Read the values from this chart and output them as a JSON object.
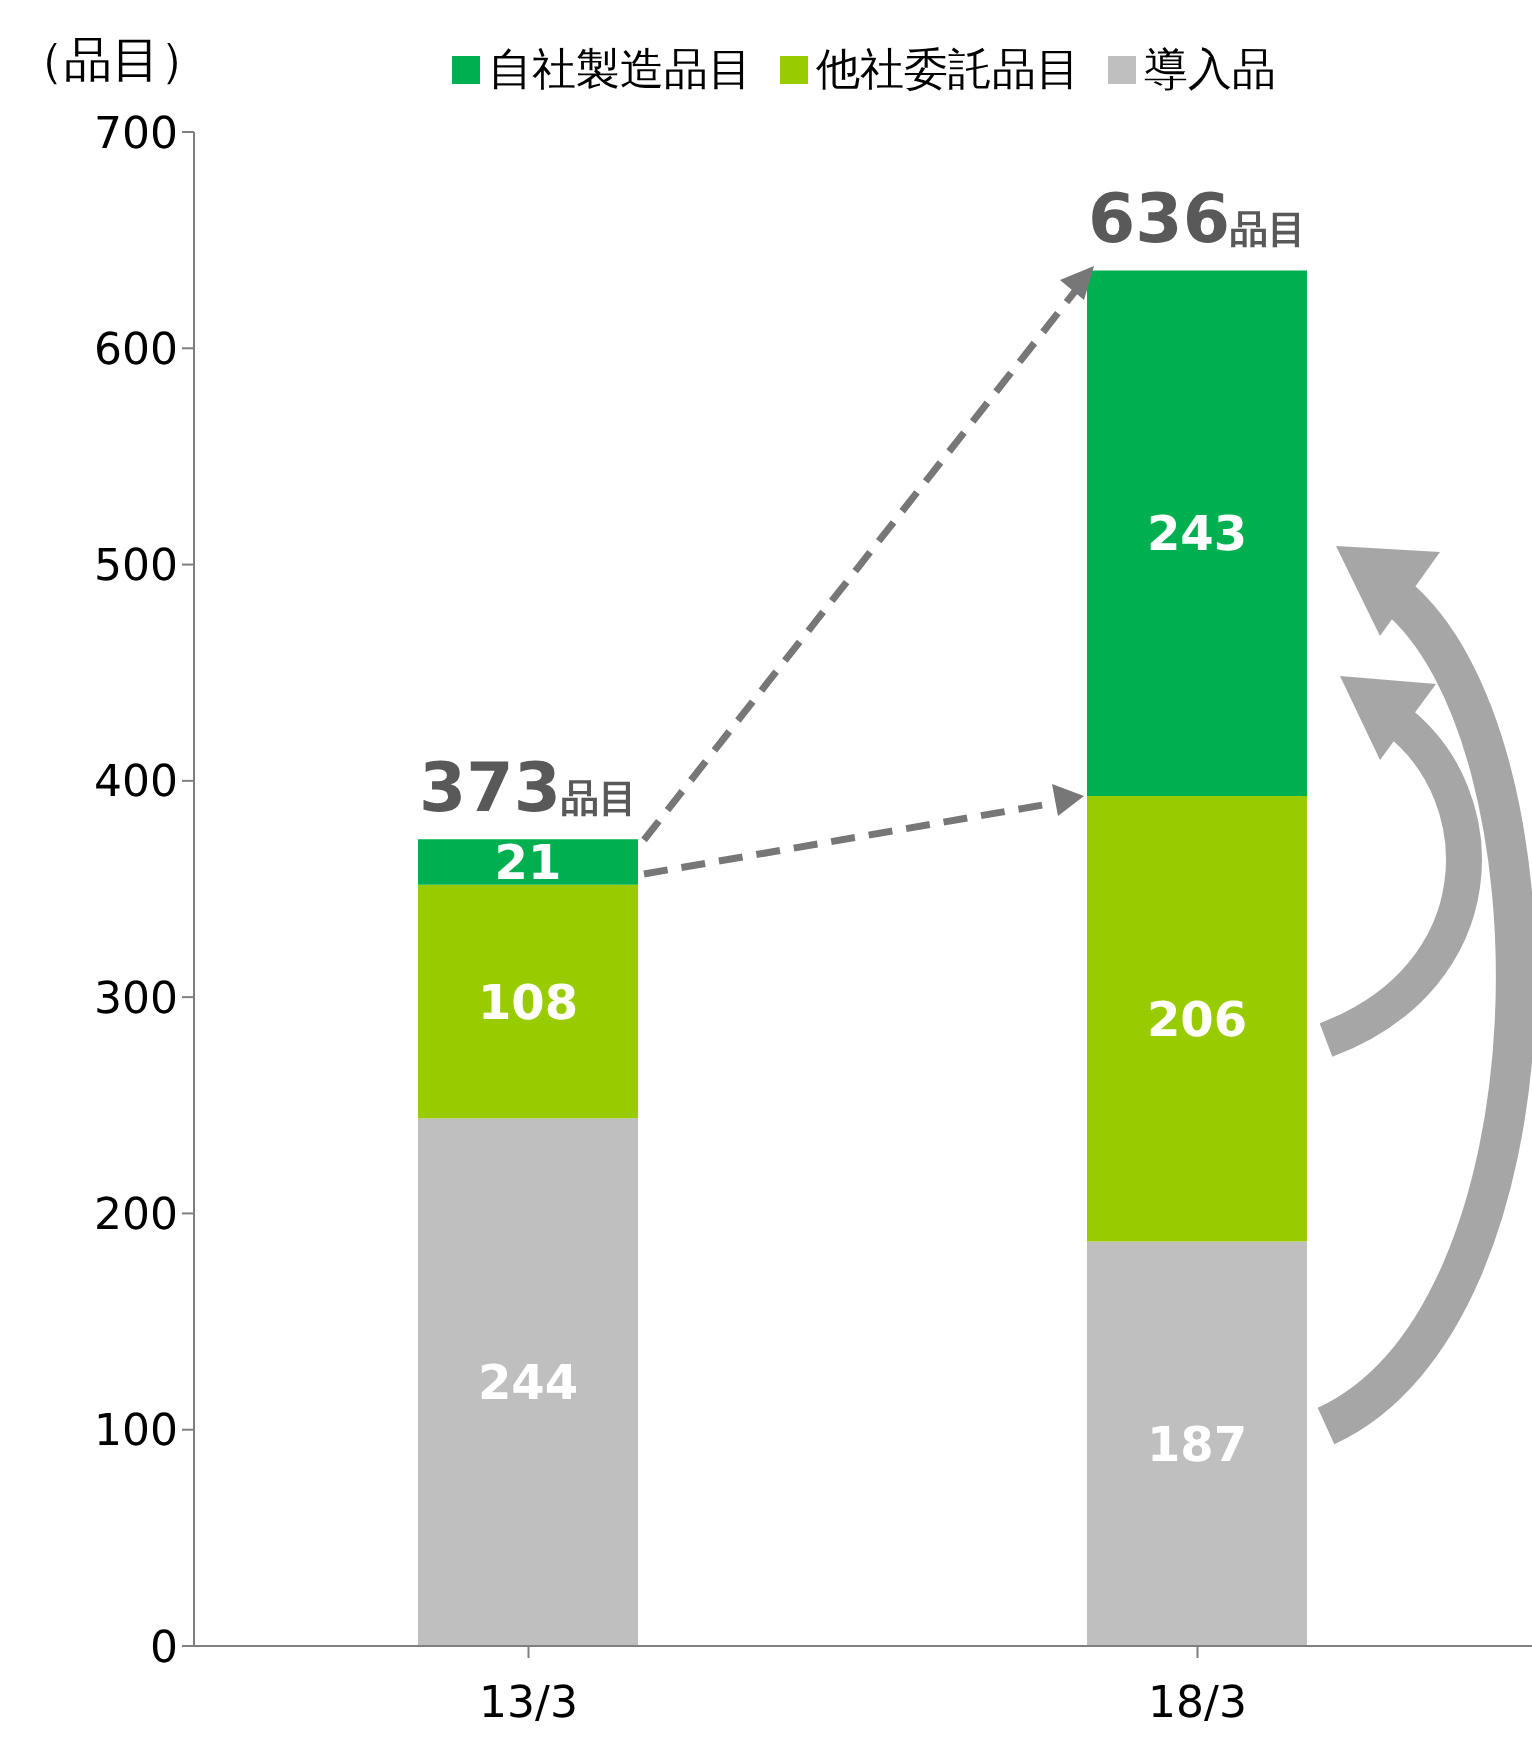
{
  "chart_data": {
    "type": "bar",
    "stacked": true,
    "ylabel": "（品目）",
    "categories": [
      "13/3",
      "18/3"
    ],
    "series": [
      {
        "name": "導入品",
        "color": "#bfbfbf",
        "values": [
          244,
          187
        ]
      },
      {
        "name": "他社委託品目",
        "color": "#99cc00",
        "values": [
          108,
          206
        ]
      },
      {
        "name": "自社製造品目",
        "color": "#00b050",
        "values": [
          21,
          243
        ]
      }
    ],
    "totals": [
      "373品目",
      "636品目"
    ],
    "ylim": [
      0,
      700
    ],
    "yticks": [
      0,
      100,
      200,
      300,
      400,
      500,
      600,
      700
    ],
    "grid": false,
    "legend": "top",
    "data_labels": true
  }
}
